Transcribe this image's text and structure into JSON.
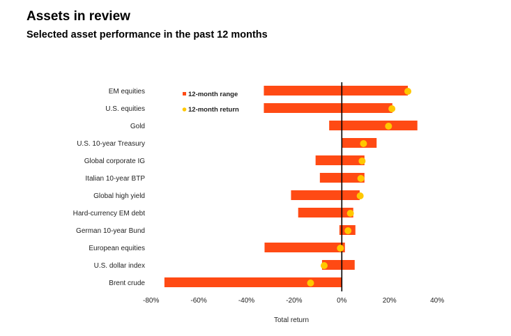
{
  "chart_data": {
    "type": "bar",
    "title": "Assets in review",
    "subtitle": "Selected asset performance in the past 12 months",
    "xlabel": "Total return",
    "ylabel": "",
    "xlim": [
      -80,
      40
    ],
    "xticks": [
      -80,
      -60,
      -40,
      -20,
      0,
      20,
      40
    ],
    "xtick_labels": [
      "-80%",
      "-60%",
      "-40%",
      "-20%",
      "0%",
      "20%",
      "40%"
    ],
    "grid": false,
    "legend": {
      "placement": "top-left",
      "entries": [
        "12-month range",
        "12-month return"
      ]
    },
    "colors": {
      "range": "#ff4a14",
      "return": "#ffc800",
      "zero_line": "#000000"
    },
    "categories": [
      "EM equities",
      "U.S. equities",
      "Gold",
      "U.S. 10-year Treasury",
      "Global corporate IG",
      "Italian 10-year BTP",
      "Global high yield",
      "Hard-currency EM debt",
      "German 10-year Bund",
      "European equities",
      "U.S. dollar index",
      "Brent crude"
    ],
    "series": [
      {
        "name": "12-month range",
        "low": [
          -32.7,
          -32.7,
          -5.3,
          0,
          -11.0,
          -9.2,
          -21.3,
          -18.3,
          -1.0,
          -32.4,
          -8.3,
          -74.4
        ],
        "high": [
          27.7,
          21.2,
          31.7,
          14.6,
          9.5,
          9.5,
          7.5,
          4.8,
          5.7,
          1.3,
          5.4,
          0
        ]
      },
      {
        "name": "12-month return",
        "values": [
          27.7,
          21.0,
          19.6,
          9.1,
          8.5,
          8.0,
          7.7,
          3.6,
          2.6,
          -0.6,
          -7.4,
          -13.1
        ]
      }
    ]
  }
}
